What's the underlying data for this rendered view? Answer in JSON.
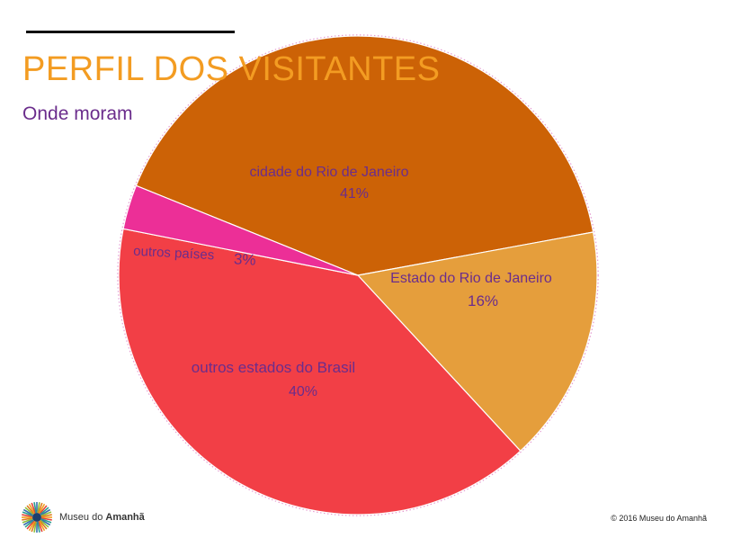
{
  "header": {
    "title": "PERFIL DOS VISITANTES",
    "subtitle": "Onde moram"
  },
  "chart_data": {
    "type": "pie",
    "title": "PERFIL DOS VISITANTES",
    "subtitle": "Onde moram",
    "slices": [
      {
        "label": "cidade do Rio de Janeiro",
        "value": 41,
        "display": "41%",
        "color": "#cc6206"
      },
      {
        "label": "Estado do Rio de Janeiro",
        "value": 16,
        "display": "16%",
        "color": "#e59e3c"
      },
      {
        "label": "outros estados do Brasil",
        "value": 40,
        "display": "40%",
        "color": "#f23f46"
      },
      {
        "label": "outros países",
        "value": 3,
        "display": "3%",
        "color": "#ec2f97"
      }
    ],
    "label_color": "#6b2d8c",
    "border_color": "#e59bd0"
  },
  "footer": {
    "logo_text_prefix": "Museu do ",
    "logo_text_bold": "Amanhã",
    "copyright": "© 2016 Museu do Amanhã"
  }
}
